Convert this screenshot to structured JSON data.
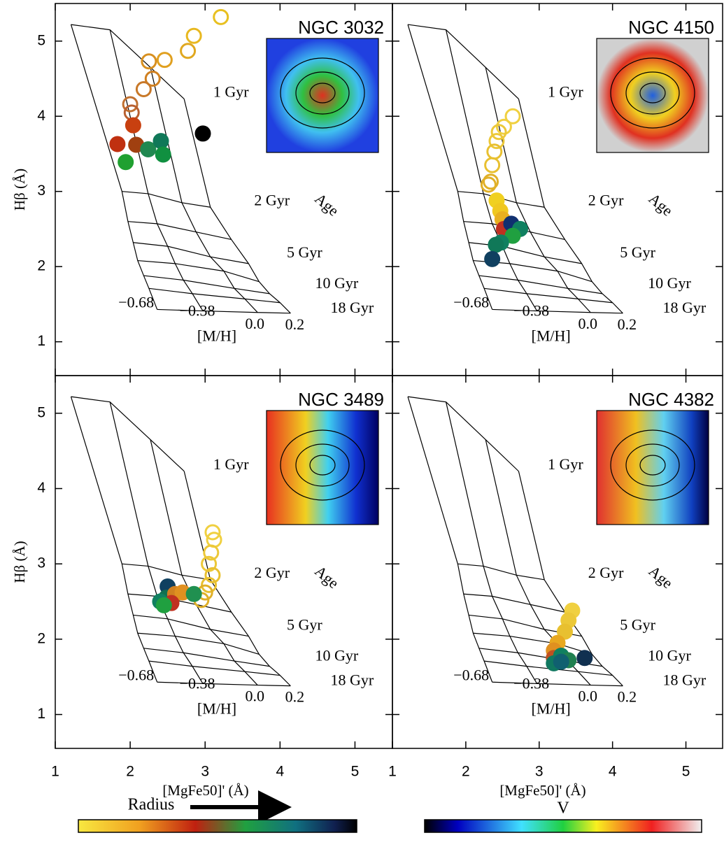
{
  "model_grid": {
    "age_labels": [
      "1 Gyr",
      "2 Gyr",
      null,
      "5 Gyr",
      null,
      "10 Gyr",
      null,
      "18 Gyr"
    ],
    "metallicity_labels": [
      "−0.68",
      "−0.38",
      "0.0",
      "0.2"
    ],
    "metallicity_axis_label": "[M/H]",
    "age_axis_label": "Age",
    "x": [
      [
        1.21,
        1.73,
        2.27,
        2.72
      ],
      [
        1.89,
        2.24,
        2.69,
        3.07
      ],
      [
        1.97,
        2.36,
        2.88,
        3.35
      ],
      [
        2.04,
        2.5,
        3.07,
        3.58
      ],
      [
        2.1,
        2.6,
        3.25,
        3.72
      ],
      [
        2.18,
        2.71,
        3.39,
        3.86
      ],
      [
        2.25,
        2.83,
        3.53,
        4.0
      ],
      [
        2.36,
        2.97,
        3.7,
        4.14
      ]
    ],
    "y": [
      [
        5.22,
        5.15,
        4.65,
        4.23
      ],
      [
        3.0,
        2.97,
        2.85,
        2.79
      ],
      [
        2.6,
        2.57,
        2.46,
        2.36
      ],
      [
        2.32,
        2.27,
        2.13,
        2.04
      ],
      [
        2.08,
        2.04,
        1.94,
        1.8
      ],
      [
        1.88,
        1.82,
        1.71,
        1.64
      ],
      [
        1.71,
        1.64,
        1.57,
        1.52
      ],
      [
        1.43,
        1.41,
        1.39,
        1.38
      ]
    ]
  },
  "chart_data": [
    {
      "type": "scatter",
      "title": "NGC 3032",
      "ylabel": "Hβ (Å)",
      "xlim": [
        1,
        5.5
      ],
      "ylim": [
        0.55,
        5.5
      ],
      "xticks": [
        1,
        2,
        3,
        4,
        5
      ],
      "yticks": [
        1,
        2,
        3,
        4,
        5
      ],
      "series": [
        {
          "marker": "open",
          "x": [
            3.21,
            2.85,
            2.77,
            2.46,
            2.25,
            2.3,
            2.18,
            2.0,
            2.02
          ],
          "y": [
            5.32,
            5.07,
            4.87,
            4.75,
            4.73,
            4.5,
            4.36,
            4.16,
            4.05
          ],
          "colors": [
            "#e8c020",
            "#e8b820",
            "#e0a820",
            "#e0a020",
            "#d89020",
            "#d08020",
            "#c87828",
            "#c07030",
            "#b86030"
          ]
        },
        {
          "marker": "filled",
          "x": [
            2.04,
            1.83,
            2.08,
            2.24,
            2.41,
            2.44,
            1.94,
            2.97
          ],
          "y": [
            3.88,
            3.63,
            3.62,
            3.56,
            3.67,
            3.49,
            3.39,
            3.77
          ],
          "colors": [
            "#c84010",
            "#c03010",
            "#a04010",
            "#208850",
            "#107858",
            "#109040",
            "#20a030",
            "#000000"
          ]
        }
      ]
    },
    {
      "type": "scatter",
      "title": "NGC 4150",
      "xlim": [
        1,
        5.5
      ],
      "ylim": [
        0.55,
        5.5
      ],
      "xticks": [
        1,
        2,
        3,
        4,
        5
      ],
      "yticks": [
        1,
        2,
        3,
        4,
        5
      ],
      "series": [
        {
          "marker": "open",
          "x": [
            2.64,
            2.52,
            2.45,
            2.42,
            2.39,
            2.36,
            2.34,
            2.31
          ],
          "y": [
            4.0,
            3.86,
            3.79,
            3.67,
            3.53,
            3.35,
            3.13,
            3.09
          ],
          "colors": [
            "#f0d040",
            "#f0d040",
            "#ecc838",
            "#ecc838",
            "#e8c030",
            "#e8c030",
            "#e0b028",
            "#e0b028"
          ]
        },
        {
          "marker": "filled",
          "x": [
            2.42,
            2.47,
            2.5,
            2.52,
            2.62,
            2.74,
            2.64,
            2.48,
            2.41,
            2.36
          ],
          "y": [
            2.88,
            2.74,
            2.63,
            2.5,
            2.57,
            2.5,
            2.41,
            2.32,
            2.29,
            2.1
          ],
          "colors": [
            "#f0d020",
            "#f0c820",
            "#e8b020",
            "#c03020",
            "#103070",
            "#108060",
            "#20a040",
            "#108060",
            "#107858",
            "#104060"
          ]
        }
      ]
    },
    {
      "type": "scatter",
      "title": "NGC 3489",
      "ylabel": "Hβ (Å)",
      "xlabel": "[MgFe50]' (Å)",
      "xlim": [
        1,
        5.5
      ],
      "ylim": [
        0.55,
        5.5
      ],
      "xticks": [
        1,
        2,
        3,
        4,
        5
      ],
      "yticks": [
        1,
        2,
        3,
        4,
        5
      ],
      "series": [
        {
          "marker": "open",
          "x": [
            3.1,
            3.12,
            3.08,
            3.05,
            3.1,
            3.05,
            3.0,
            2.95
          ],
          "y": [
            3.42,
            3.32,
            3.15,
            3.0,
            2.85,
            2.72,
            2.62,
            2.52
          ],
          "colors": [
            "#f0d040",
            "#f0d040",
            "#ecc838",
            "#ecc838",
            "#e8c030",
            "#e8c030",
            "#e0b028",
            "#e0b028"
          ]
        },
        {
          "marker": "filled",
          "x": [
            2.5,
            2.48,
            2.6,
            2.7,
            2.85,
            2.55,
            2.4,
            2.45
          ],
          "y": [
            2.7,
            2.55,
            2.6,
            2.62,
            2.6,
            2.48,
            2.5,
            2.45
          ],
          "colors": [
            "#104060",
            "#107050",
            "#d08020",
            "#e09020",
            "#209050",
            "#c03020",
            "#108060",
            "#20a040"
          ]
        }
      ]
    },
    {
      "type": "scatter",
      "title": "NGC 4382",
      "xlabel": "[MgFe50]' (Å)",
      "xlim": [
        1,
        5.5
      ],
      "ylim": [
        0.55,
        5.5
      ],
      "xticks": [
        1,
        2,
        3,
        4,
        5
      ],
      "yticks": [
        1,
        2,
        3,
        4,
        5
      ],
      "series": [
        {
          "marker": "filled",
          "x": [
            3.45,
            3.4,
            3.35,
            3.25,
            3.2,
            3.2,
            3.3,
            3.2,
            3.4,
            3.62,
            3.3
          ],
          "y": [
            2.38,
            2.25,
            2.1,
            1.95,
            1.85,
            1.75,
            1.78,
            1.68,
            1.72,
            1.75,
            1.7
          ],
          "colors": [
            "#f0d040",
            "#ecc838",
            "#e8c030",
            "#e8a820",
            "#e09020",
            "#c05020",
            "#108060",
            "#107860",
            "#208050",
            "#103050",
            "#106070"
          ]
        }
      ]
    }
  ],
  "colorbars": {
    "radius": {
      "label": "Radius"
    },
    "velocity": {
      "label": "V"
    }
  }
}
